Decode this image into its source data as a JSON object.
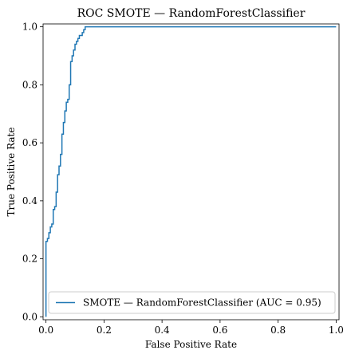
{
  "chart_data": {
    "type": "line",
    "title": "ROC SMOTE — RandomForestClassifier",
    "xlabel": "False Positive Rate",
    "ylabel": "True Positive Rate",
    "xlim": [
      -0.01,
      1.01
    ],
    "ylim": [
      -0.01,
      1.01
    ],
    "xticks": [
      0.0,
      0.2,
      0.4,
      0.6,
      0.8,
      1.0
    ],
    "yticks": [
      0.0,
      0.2,
      0.4,
      0.6,
      0.8,
      1.0
    ],
    "xtick_labels": [
      "0.0",
      "0.2",
      "0.4",
      "0.6",
      "0.8",
      "1.0"
    ],
    "ytick_labels": [
      "0.0",
      "0.2",
      "0.4",
      "0.6",
      "0.8",
      "1.0"
    ],
    "grid": false,
    "legend_position": "lower-right",
    "series": [
      {
        "name": "SMOTE — RandomForestClassifier (AUC = 0.95)",
        "color": "#1f77b4",
        "x": [
          0.0,
          0.0,
          0.005,
          0.005,
          0.01,
          0.01,
          0.015,
          0.015,
          0.02,
          0.02,
          0.025,
          0.025,
          0.03,
          0.03,
          0.035,
          0.035,
          0.04,
          0.04,
          0.045,
          0.045,
          0.05,
          0.05,
          0.055,
          0.055,
          0.06,
          0.06,
          0.065,
          0.065,
          0.07,
          0.07,
          0.075,
          0.075,
          0.08,
          0.08,
          0.085,
          0.085,
          0.09,
          0.09,
          0.095,
          0.095,
          0.1,
          0.1,
          0.105,
          0.105,
          0.11,
          0.11,
          0.115,
          0.115,
          0.12,
          0.12,
          0.125,
          0.125,
          0.13,
          0.13,
          0.135,
          0.135,
          0.14,
          0.14,
          0.2,
          0.4,
          0.6,
          0.8,
          1.0
        ],
        "y": [
          0.0,
          0.26,
          0.26,
          0.27,
          0.27,
          0.29,
          0.29,
          0.31,
          0.31,
          0.32,
          0.32,
          0.37,
          0.37,
          0.38,
          0.38,
          0.43,
          0.43,
          0.49,
          0.49,
          0.52,
          0.52,
          0.56,
          0.56,
          0.63,
          0.63,
          0.67,
          0.67,
          0.71,
          0.71,
          0.74,
          0.74,
          0.75,
          0.75,
          0.8,
          0.8,
          0.88,
          0.88,
          0.9,
          0.9,
          0.92,
          0.92,
          0.94,
          0.94,
          0.95,
          0.95,
          0.96,
          0.96,
          0.97,
          0.97,
          0.97,
          0.97,
          0.98,
          0.98,
          0.99,
          0.99,
          1.0,
          1.0,
          1.0,
          1.0,
          1.0,
          1.0,
          1.0,
          1.0
        ]
      }
    ]
  }
}
